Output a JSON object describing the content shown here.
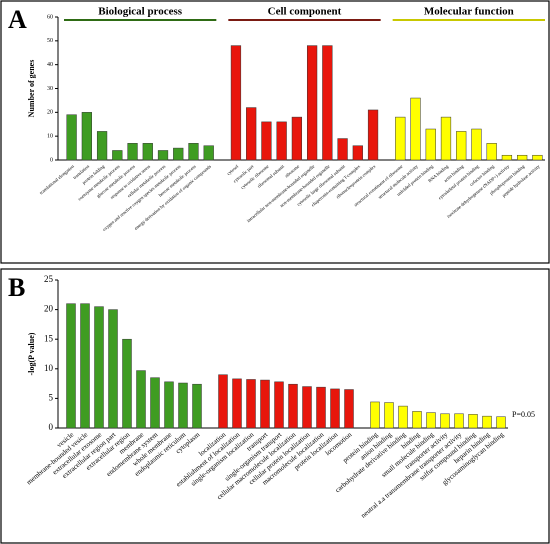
{
  "chart_data": [
    {
      "type": "bar",
      "panel_label": "A",
      "ylabel": "Number of genes",
      "ylim": [
        0,
        60
      ],
      "yticks": [
        0,
        10,
        20,
        30,
        40,
        50,
        60
      ],
      "groups": [
        {
          "name": "Biological process",
          "color": "#3f9c22",
          "header_color": "#2e6b14",
          "categories": [
            "translational elongation",
            "translation",
            "protein folding",
            "coenzyme metabolic process",
            "glucose metabolic process",
            "response to oxidative stress",
            "cellular metabolic process",
            "oxygen and reactive oxygen species metabolic process",
            "hexose metabolic process",
            "energy derivation by oxidation of organic compounds"
          ],
          "values": [
            19,
            20,
            12,
            4,
            7,
            7,
            4,
            5,
            7,
            6
          ]
        },
        {
          "name": "Cell component",
          "color": "#e8160c",
          "header_color": "#7a1a12",
          "categories": [
            "cytosol",
            "cytosolic part",
            "cytosolic ribosome",
            "ribosomal subunit",
            "ribosome",
            "intracellular non-membrane-bounded organelle",
            "non-membrane-bounded organelle",
            "cytosolic large ribosomal subunit",
            "chaperonin-containing T-complex",
            "ribonucleoprotein complex"
          ],
          "values": [
            48,
            22,
            16,
            16,
            18,
            48,
            48,
            9,
            6,
            21
          ]
        },
        {
          "name": "Molecular function",
          "color": "#ffff00",
          "header_color": "#c8c800",
          "categories": [
            "structural constituent of ribosome",
            "structural molecule activity",
            "unfolded protein binding",
            "RNA binding",
            "actin binding",
            "cytoskeletal protein binding",
            "cofactor binding",
            "isocitrate dehydrogenase (NADP+) activity",
            "phosphoprotein binding",
            "peptide hydrolase activity"
          ],
          "values": [
            18,
            26,
            13,
            18,
            12,
            13,
            7,
            2,
            2,
            2
          ]
        }
      ]
    },
    {
      "type": "bar",
      "panel_label": "B",
      "ylabel": "-log(P value)",
      "annotation": "P=0.05",
      "ylim": [
        0,
        25
      ],
      "yticks": [
        0,
        5,
        10,
        15,
        20,
        25
      ],
      "groups": [
        {
          "color": "#3f9c22",
          "categories": [
            "vesicle",
            "membrane-bounded vesicle",
            "extracellular exosome",
            "extracellular region part",
            "extracellular region",
            "membrane",
            "endomembrane system",
            "whole membrane",
            "endoplasmic reticulum",
            "cytoplasm"
          ],
          "values": [
            21,
            21,
            20.5,
            20,
            15,
            9.7,
            8.5,
            7.8,
            7.6,
            7.4
          ]
        },
        {
          "color": "#e8160c",
          "categories": [
            "localization",
            "establishment of localization",
            "single-organism localization",
            "transport",
            "single-organism transport",
            "cellular macromolecule localization",
            "cellular protein localization",
            "macromolecule localization",
            "protein localization",
            "locomotion"
          ],
          "values": [
            9,
            8.3,
            8.2,
            8.1,
            7.8,
            7.4,
            7,
            6.9,
            6.6,
            6.5
          ]
        },
        {
          "color": "#ffff00",
          "categories": [
            "protein binding",
            "anion binding",
            "carbohydrate derivative binding",
            "binding",
            "small molecule binding",
            "transporter activity",
            "neutral a.a transmembrane transporter activity",
            "sulfur compound binding",
            "heparin binding",
            "glycosaminoglycan binding"
          ],
          "values": [
            4.4,
            4.3,
            3.7,
            2.8,
            2.6,
            2.4,
            2.4,
            2.3,
            2,
            1.9
          ]
        }
      ]
    }
  ]
}
